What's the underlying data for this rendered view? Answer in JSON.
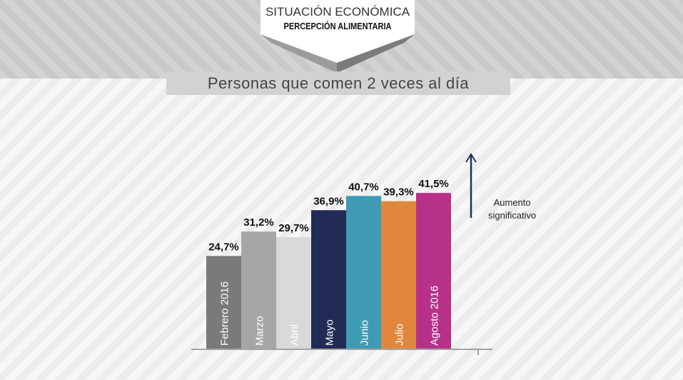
{
  "header": {
    "section": "SITUACIÓN ECONÓMICA",
    "subsection": "PERCEPCIÓN ALIMENTARIA"
  },
  "chart_data": {
    "type": "bar",
    "title": "Personas que comen 2 veces al día",
    "categories": [
      "Febrero 2016",
      "Marzo",
      "Abril",
      "Mayo",
      "Junio",
      "Julio",
      "Agosto 2016"
    ],
    "values": [
      24.7,
      31.2,
      29.7,
      36.9,
      40.7,
      39.3,
      41.5
    ],
    "data_labels": [
      "24,7%",
      "31,2%",
      "29,7%",
      "36,9%",
      "40,7%",
      "39,3%",
      "41,5%"
    ],
    "colors": [
      "#7a7a7a",
      "#a6a6a6",
      "#d9d9d9",
      "#222b55",
      "#3e9bb3",
      "#e0873d",
      "#b83189"
    ],
    "ylim": [
      0,
      45
    ],
    "grid": false,
    "annotation": {
      "line1": "Aumento",
      "line2": "significativo",
      "arrow_color": "#1f3358"
    }
  }
}
